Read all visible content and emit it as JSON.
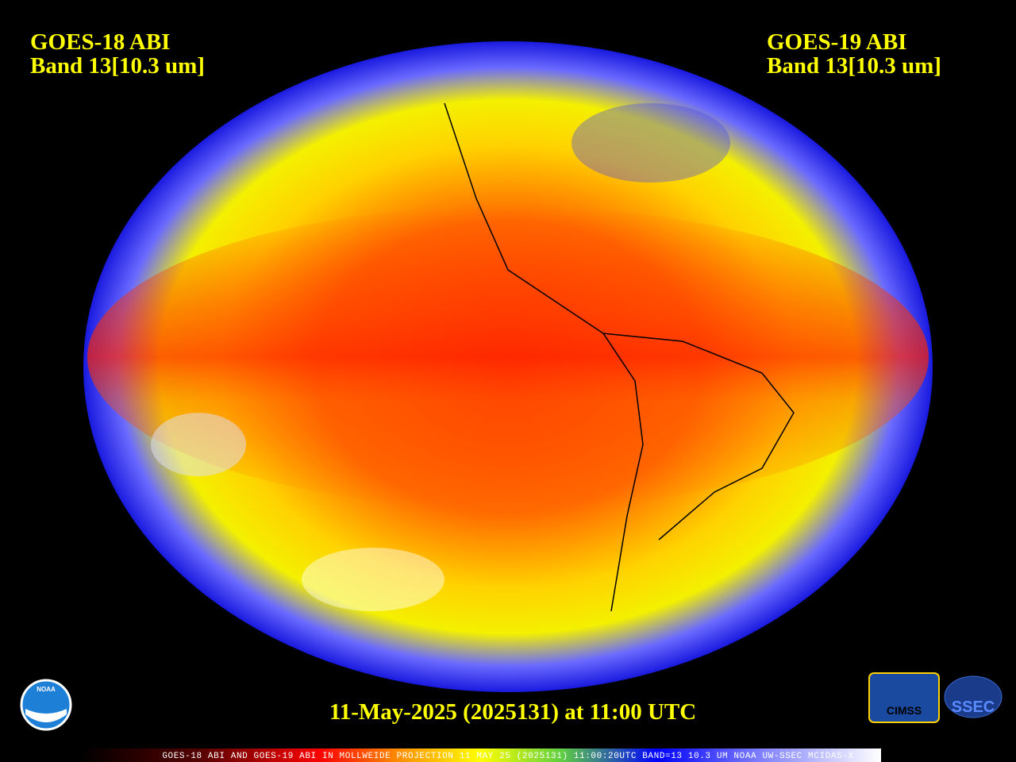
{
  "header": {
    "left": [
      "GOES-18 ABI",
      "Band 13[10.3 um]"
    ],
    "right": [
      "GOES-19 ABI",
      "Band 13[10.3 um]"
    ]
  },
  "timestamp": "11-May-2025 (2025131) at 11:00 UTC",
  "caption": "GOES-18 ABI AND GOES-19 ABI IN MOLLWEIDE PROJECTION 11 MAY 25 (2025131) 11:00:20UTC BAND=13 10.3 UM NOAA UW-SSEC MCIDAS-X",
  "logos": {
    "noaa": "NOAA",
    "cimss": "CIMSS",
    "ssec": "SSEC"
  }
}
